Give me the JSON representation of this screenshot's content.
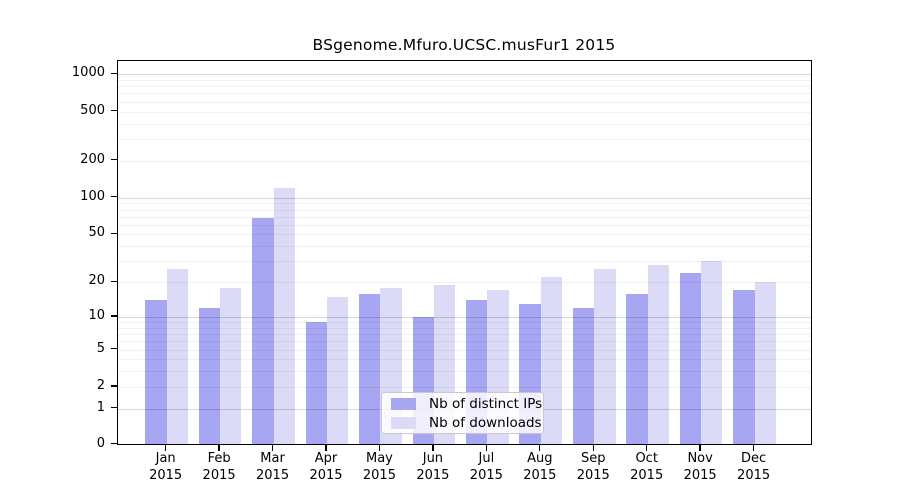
{
  "chart_data": {
    "type": "bar",
    "title": "BSgenome.Mfuro.UCSC.musFur1 2015",
    "year": "2015",
    "months": [
      "Jan",
      "Feb",
      "Mar",
      "Apr",
      "May",
      "Jun",
      "Jul",
      "Aug",
      "Sep",
      "Oct",
      "Nov",
      "Dec"
    ],
    "categories": [
      "Jan 2015",
      "Feb 2015",
      "Mar 2015",
      "Apr 2015",
      "May 2015",
      "Jun 2015",
      "Jul 2015",
      "Aug 2015",
      "Sep 2015",
      "Oct 2015",
      "Nov 2015",
      "Dec 2015"
    ],
    "series": [
      {
        "name": "Nb of distinct IPs",
        "color": "#a6a6f2",
        "values": [
          14,
          12,
          68,
          9,
          16,
          10,
          14,
          13,
          12,
          16,
          24,
          17
        ]
      },
      {
        "name": "Nb of downloads",
        "color": "#dbdbf8",
        "values": [
          26,
          18,
          119,
          15,
          18,
          19,
          17,
          22,
          26,
          28,
          30,
          20
        ]
      }
    ],
    "y_ticks": [
      0,
      1,
      2,
      5,
      10,
      20,
      50,
      100,
      200,
      500,
      1000
    ],
    "y_scale": "log1p",
    "ylim": [
      0,
      1280
    ],
    "xlabel": "",
    "ylabel": "",
    "grid": true,
    "legend_position": "bottom-center",
    "colors": {
      "grid_minor": "rgba(0,0,0,0.055)",
      "grid_major": "rgba(0,0,0,0.16)",
      "axis": "#000000",
      "background": "#ffffff"
    }
  }
}
